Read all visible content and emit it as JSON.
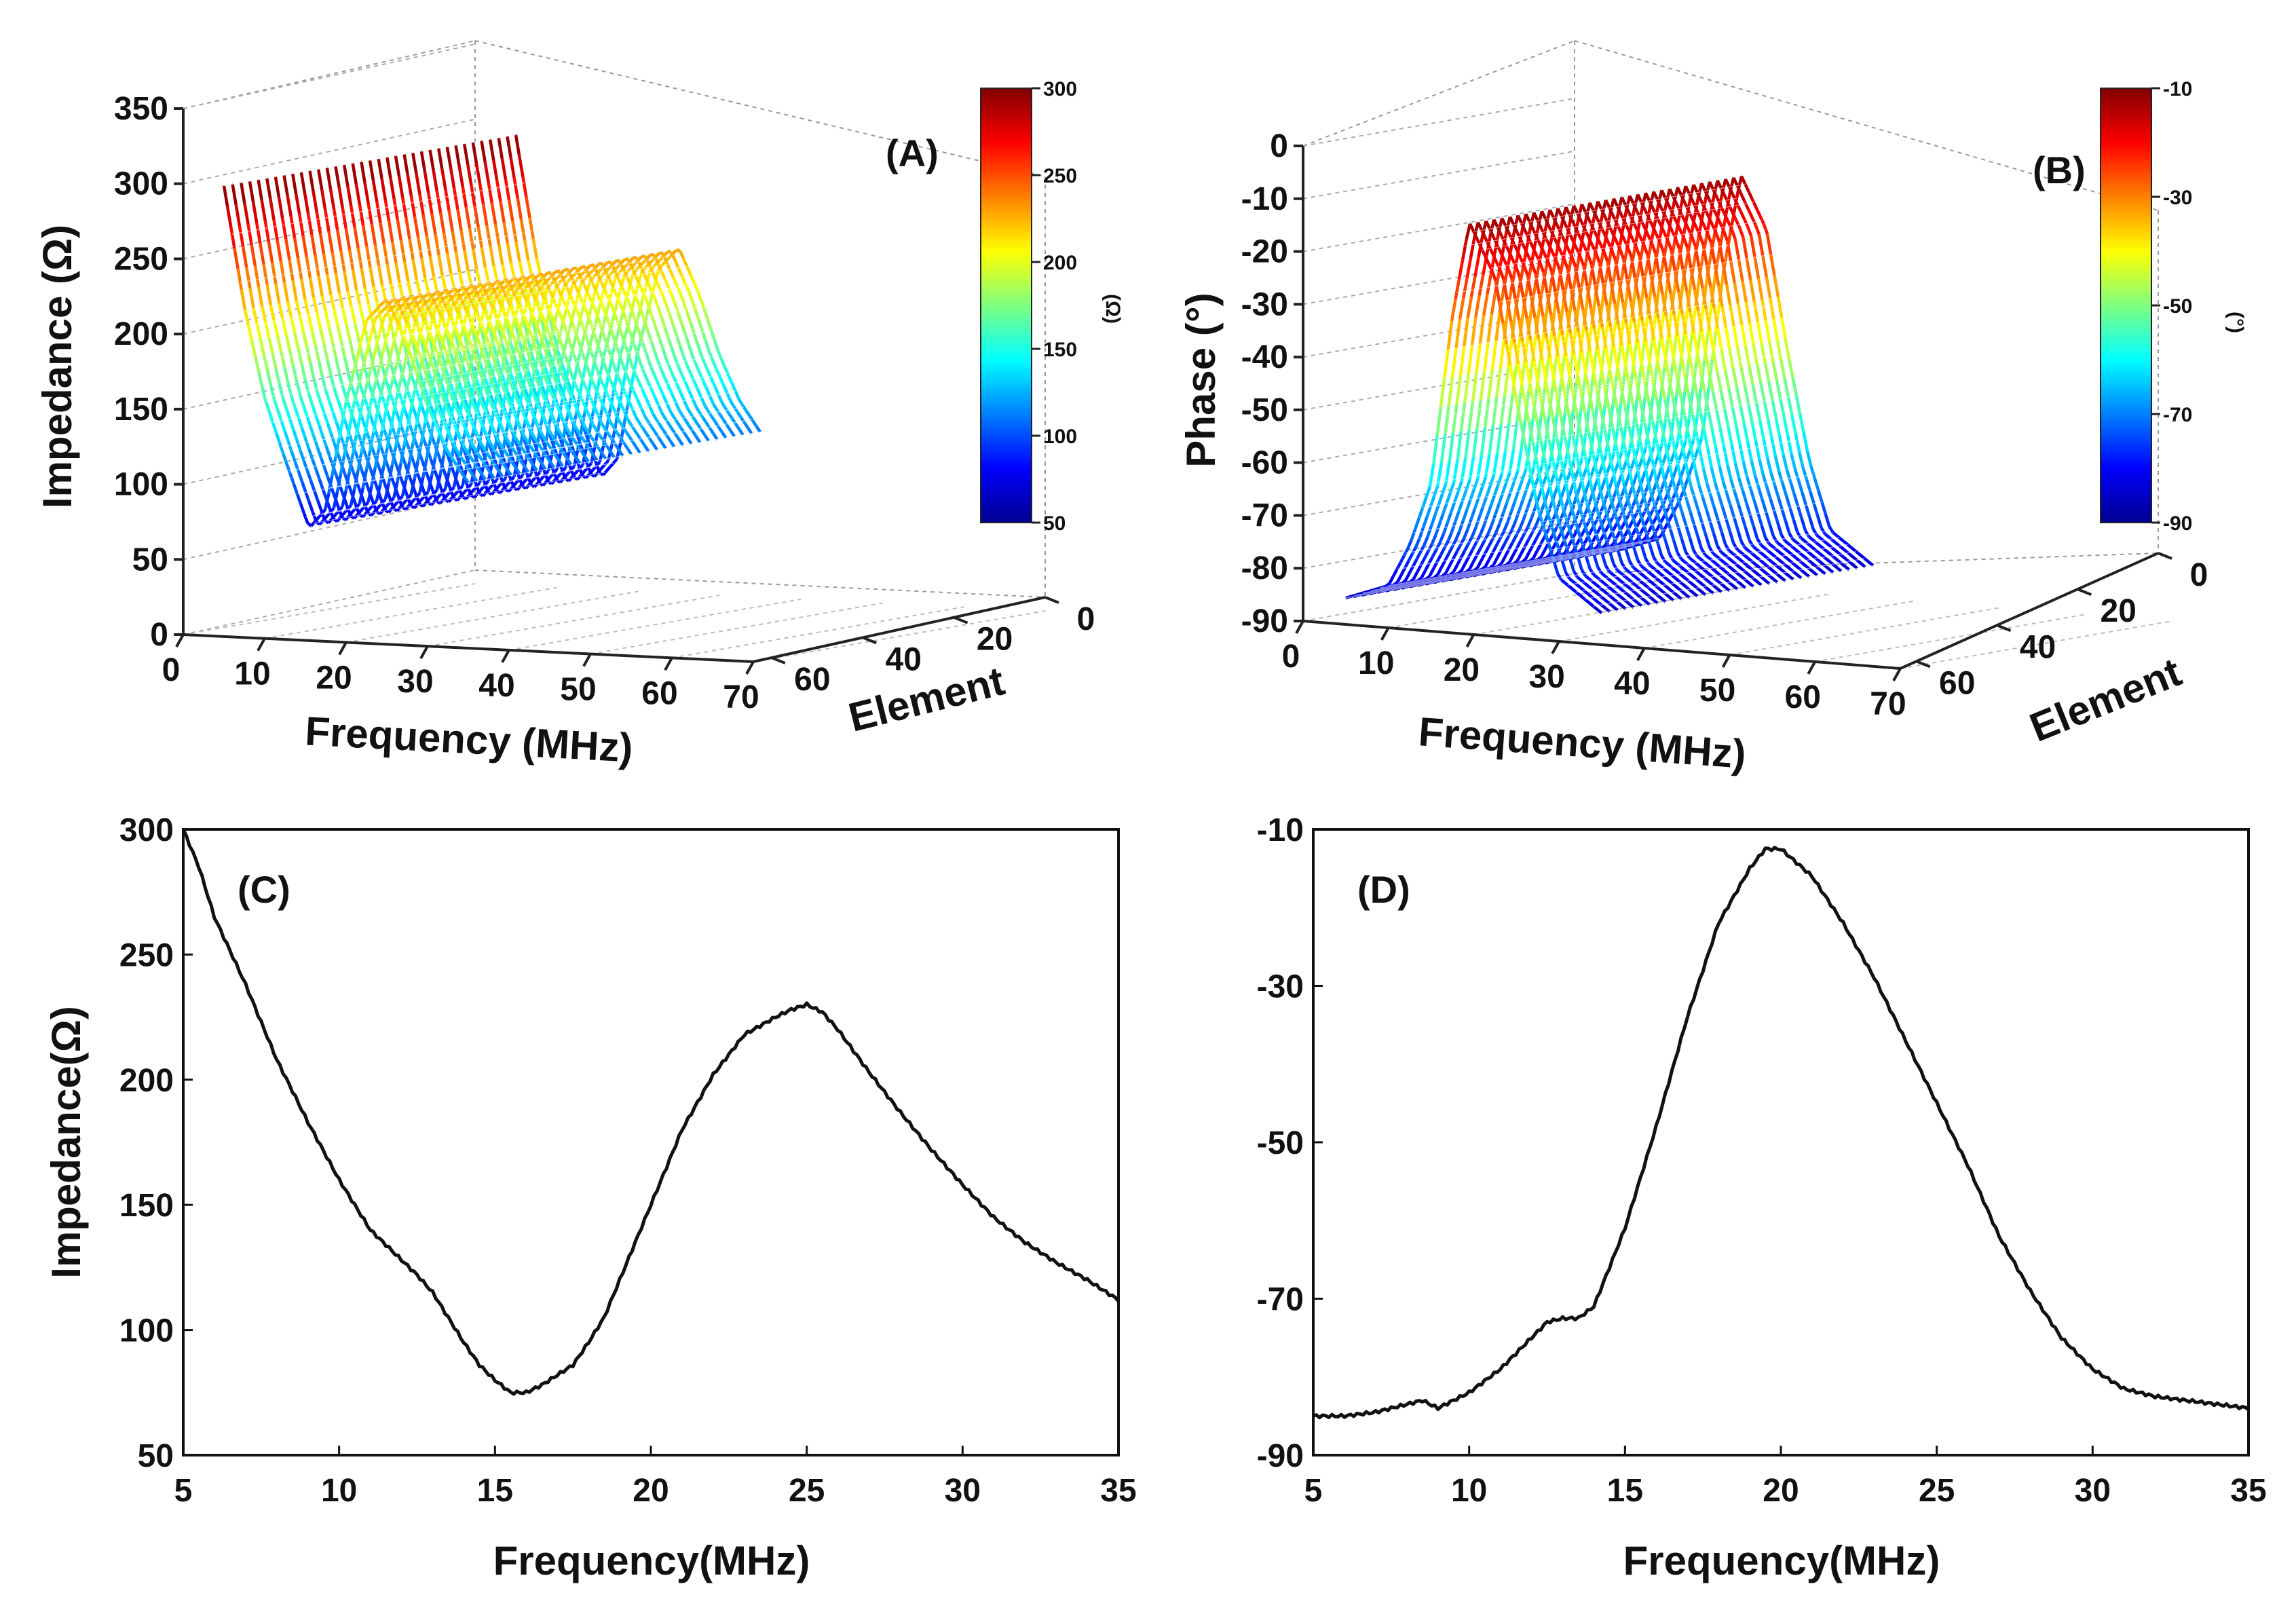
{
  "chart_data": [
    {
      "panel_label": "(A)",
      "type": "surface3d",
      "xlabel": "Frequency (MHz)",
      "ylabel": "Element",
      "zlabel": "Impedance  (Ω)",
      "x_ticks": [
        "0",
        "10",
        "20",
        "30",
        "40",
        "50",
        "60",
        "70"
      ],
      "y_ticks": [
        "0",
        "20",
        "40",
        "60"
      ],
      "z_ticks": [
        "0",
        "50",
        "100",
        "150",
        "200",
        "250",
        "300",
        "350"
      ],
      "xlim": [
        0,
        70
      ],
      "ylim": [
        0,
        64
      ],
      "zlim": [
        0,
        350
      ],
      "freq_range": [
        5,
        35
      ],
      "profile_freq": [
        5,
        7.5,
        10,
        12.5,
        15,
        15.5,
        17.5,
        20,
        22.5,
        25,
        27.5,
        30,
        32.5,
        35
      ],
      "profile_z": [
        300,
        220,
        160,
        120,
        82,
        75,
        88,
        160,
        215,
        230,
        200,
        160,
        130,
        110
      ],
      "colorbar": {
        "label": "(Ω)",
        "ticks": [
          "300",
          "250",
          "200",
          "150",
          "100",
          "50"
        ],
        "range": [
          50,
          300
        ]
      }
    },
    {
      "panel_label": "(B)",
      "type": "surface3d",
      "xlabel": "Frequency (MHz)",
      "ylabel": "Element",
      "zlabel": "Phase  (°)",
      "x_ticks": [
        "0",
        "10",
        "20",
        "30",
        "40",
        "50",
        "60",
        "70"
      ],
      "y_ticks": [
        "0",
        "20",
        "40",
        "60"
      ],
      "z_ticks": [
        "0",
        "-10",
        "-20",
        "-30",
        "-40",
        "-50",
        "-60",
        "-70",
        "-80",
        "-90"
      ],
      "xlim": [
        0,
        70
      ],
      "ylim": [
        0,
        64
      ],
      "zlim": [
        -90,
        0
      ],
      "freq_range": [
        5,
        35
      ],
      "profile_freq": [
        5,
        10,
        12.5,
        15,
        17.5,
        19.5,
        22.5,
        25,
        27.5,
        30,
        35
      ],
      "profile_z": [
        -85,
        -82,
        -74,
        -62,
        -30,
        -12,
        -22,
        -45,
        -65,
        -78,
        -84
      ],
      "colorbar": {
        "label": "(°)",
        "ticks": [
          "-10",
          "-30",
          "-50",
          "-70",
          "-90"
        ],
        "range": [
          -90,
          -10
        ]
      }
    },
    {
      "panel_label": "(C)",
      "type": "line",
      "xlabel": "Frequency(MHz)",
      "ylabel": "Impedance(Ω)",
      "xlim": [
        5,
        35
      ],
      "ylim": [
        50,
        300
      ],
      "x_ticks": [
        "5",
        "10",
        "15",
        "20",
        "25",
        "30",
        "35"
      ],
      "y_ticks": [
        "50",
        "100",
        "150",
        "200",
        "250",
        "300"
      ],
      "series": [
        {
          "name": "Impedance",
          "x": [
            5,
            5.5,
            6,
            7,
            8,
            9,
            10,
            11,
            12,
            12.5,
            13,
            13.5,
            14,
            14.5,
            15,
            15.5,
            16,
            16.5,
            17,
            17.5,
            18,
            18.5,
            19,
            19.5,
            20,
            21,
            22,
            23,
            24,
            24.5,
            25,
            25.5,
            26,
            27,
            28,
            29,
            30,
            31,
            32,
            33,
            34,
            35
          ],
          "y": [
            300,
            285,
            265,
            238,
            208,
            183,
            160,
            140,
            128,
            122,
            115,
            105,
            95,
            86,
            80,
            75,
            75,
            78,
            82,
            86,
            95,
            105,
            120,
            135,
            150,
            180,
            202,
            218,
            225,
            228,
            230,
            227,
            220,
            203,
            187,
            172,
            158,
            145,
            135,
            127,
            120,
            112
          ]
        }
      ]
    },
    {
      "panel_label": "(D)",
      "type": "line",
      "xlabel": "Frequency(MHz)",
      "ylabel": "",
      "xlim": [
        5,
        35
      ],
      "ylim": [
        -90,
        -10
      ],
      "x_ticks": [
        "5",
        "10",
        "15",
        "20",
        "25",
        "30",
        "35"
      ],
      "y_ticks": [
        "-10",
        "-30",
        "-50",
        "-70",
        "-90"
      ],
      "series": [
        {
          "name": "Phase",
          "x": [
            5,
            6,
            7,
            8,
            8.5,
            9,
            10,
            11,
            12,
            12.5,
            13,
            13.5,
            14,
            14.5,
            15,
            16,
            17,
            18,
            19,
            19.5,
            20,
            21,
            22,
            23,
            24,
            25,
            26,
            27,
            28,
            29,
            30,
            31,
            32,
            33,
            34,
            35
          ],
          "y": [
            -85,
            -85,
            -84.5,
            -83.5,
            -83,
            -84,
            -82,
            -79,
            -75,
            -73,
            -72.5,
            -72.5,
            -71,
            -66,
            -61,
            -48,
            -34,
            -22,
            -15,
            -12.5,
            -12.5,
            -16,
            -22,
            -29,
            -37,
            -45,
            -53,
            -62,
            -69,
            -75,
            -79,
            -81.5,
            -82.5,
            -83,
            -83.5,
            -84
          ]
        }
      ]
    }
  ]
}
